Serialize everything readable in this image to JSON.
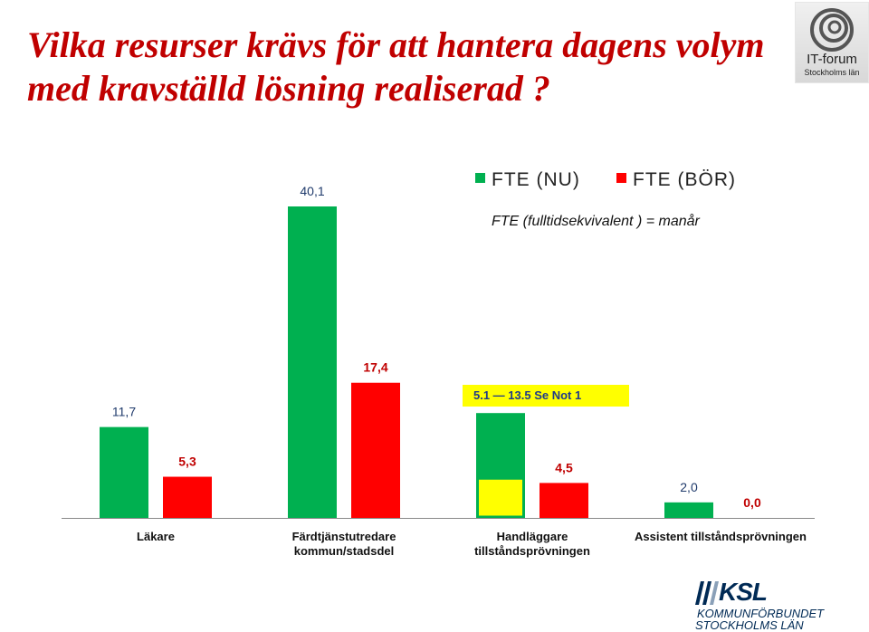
{
  "page_title": "Vilka resurser krävs för att hantera dagens volym med kravställd lösning realiserad ?",
  "logos": {
    "it_forum": {
      "name": "IT-forum",
      "subtitle": "Stockholms län"
    },
    "ksl": {
      "name": "KSL",
      "line1": "KOMMUNFÖRBUNDET",
      "line2": "STOCKHOLMS LÄN"
    }
  },
  "colors": {
    "nu": "#00b050",
    "bor": "#ff0000",
    "highlight": "#ffff00",
    "title": "#c00000"
  },
  "chart_data": {
    "type": "bar",
    "subtitle": "FTE (fulltidsekvivalent ) = manår",
    "categories": [
      "Läkare",
      "Färdtjänstutredare kommun/stadsdel",
      "Handläggare tillståndsprövningen",
      "Assistent tillståndsprövningen"
    ],
    "category_lines": [
      [
        "Läkare"
      ],
      [
        "Färdtjänstutredare",
        "kommun/stadsdel"
      ],
      [
        "Handläggare",
        "tillståndsprövningen"
      ],
      [
        "Assistent tillståndsprövningen"
      ]
    ],
    "series": [
      {
        "name": "FTE (NU)",
        "values": [
          11.7,
          40.1,
          13.5,
          2.0
        ],
        "labels": [
          "11,7",
          "40,1",
          "",
          "2,0"
        ]
      },
      {
        "name": "FTE (BÖR)",
        "values": [
          5.3,
          17.4,
          4.5,
          0.0
        ],
        "labels": [
          "5,3",
          "17,4",
          "4,5",
          "0,0"
        ]
      }
    ],
    "range_segment": {
      "category": "Handläggare tillståndsprövningen",
      "series": "FTE (NU)",
      "from": 0,
      "to": 5.1
    },
    "annotation": "5.1 — 13.5  Se Not 1",
    "ylim": [
      0,
      42
    ],
    "grid": false,
    "legend": "top-right"
  }
}
